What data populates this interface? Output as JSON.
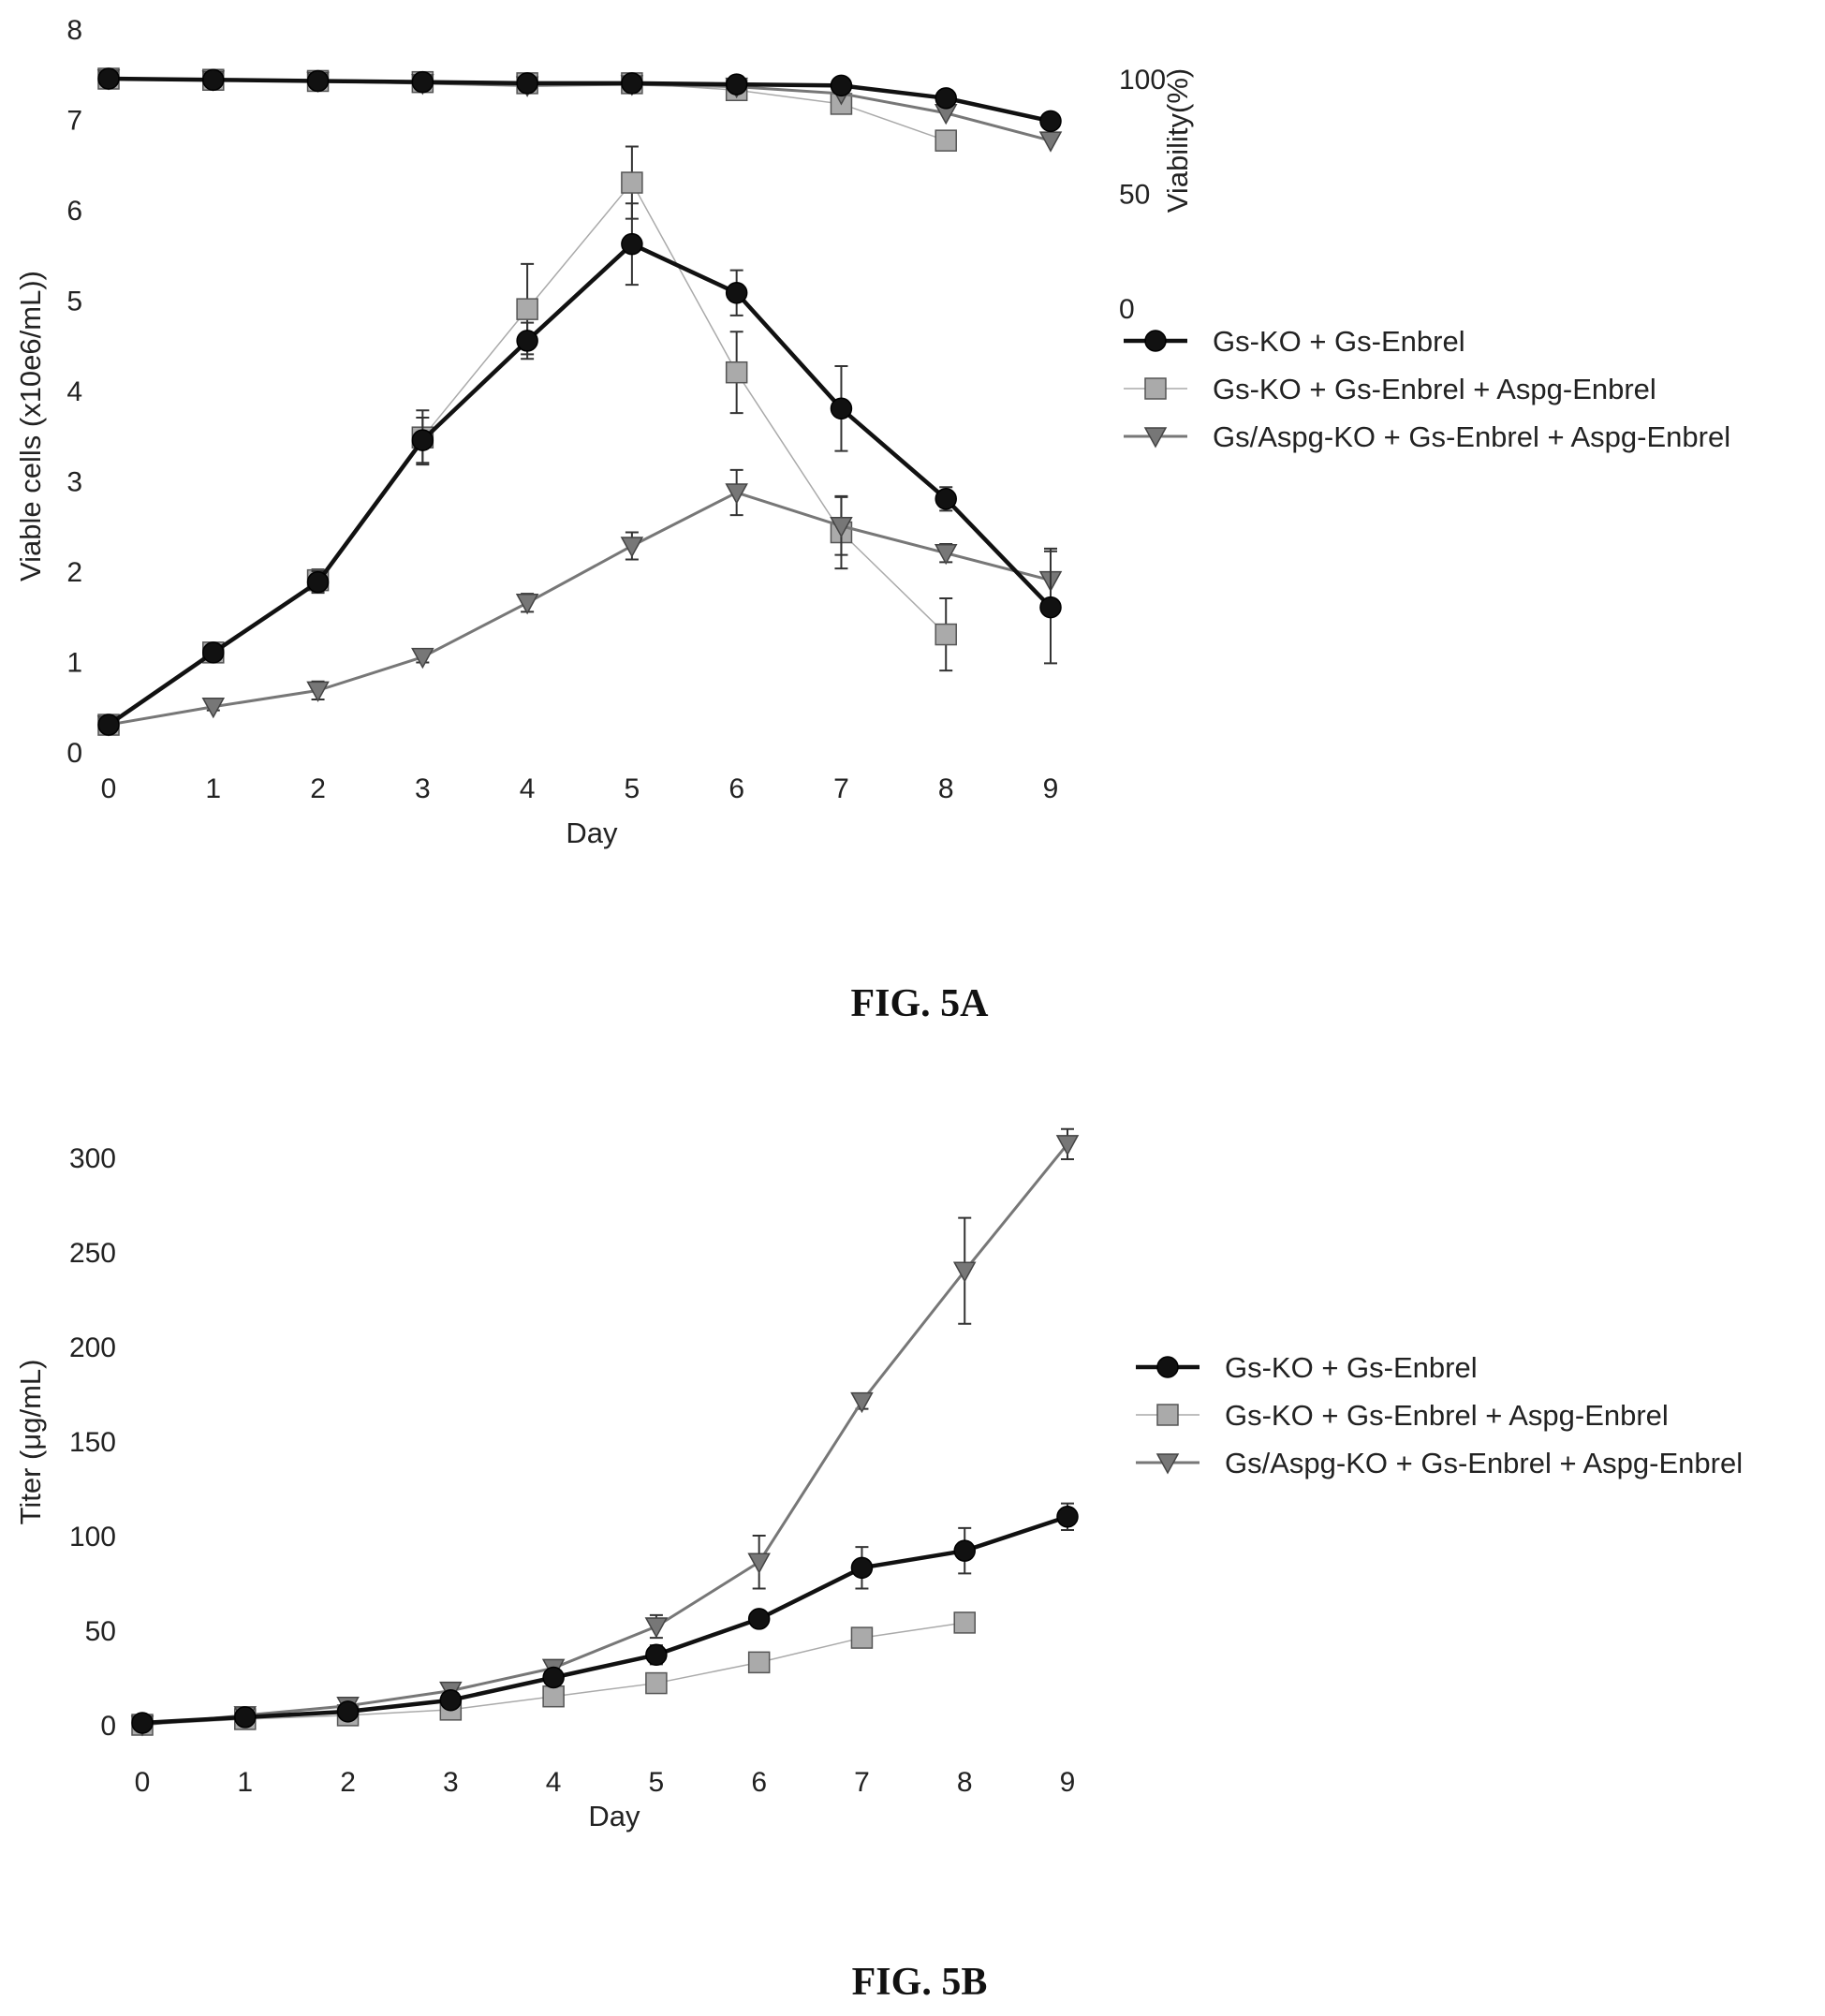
{
  "chart_data": [
    {
      "type": "line",
      "caption": "FIG. 5A",
      "xlabel": "Day",
      "ylabel": "Viable cells (x10e6/mL))",
      "y2label": "Viability(%)",
      "x": [
        0,
        1,
        2,
        3,
        4,
        5,
        6,
        7,
        8,
        9
      ],
      "xlim": [
        0,
        9
      ],
      "ylim": [
        0,
        8
      ],
      "yticks": [
        0,
        1,
        2,
        3,
        4,
        5,
        6,
        7,
        8
      ],
      "y2ticks": [
        0,
        50,
        100
      ],
      "y2lim": [
        0,
        100
      ],
      "legend_position": "right",
      "series": [
        {
          "name": "Gs-KO + Gs-Enbrel",
          "marker": "circle",
          "color": "#111111",
          "stroke_width": 4.5,
          "axis": "left",
          "values": [
            0.3,
            1.1,
            1.88,
            3.45,
            4.55,
            5.62,
            5.08,
            3.8,
            2.8,
            1.6
          ],
          "errors": [
            0.03,
            0.05,
            0.12,
            0.25,
            0.2,
            0.45,
            0.25,
            0.47,
            0.13,
            0.62
          ]
        },
        {
          "name": "Gs-KO + Gs-Enbrel + Aspg-Enbrel",
          "marker": "square",
          "color": "#aaaaaa",
          "stroke_width": 1.5,
          "axis": "left",
          "values": [
            0.3,
            1.1,
            1.9,
            3.48,
            4.9,
            6.3,
            4.2,
            2.43,
            1.3,
            null
          ],
          "errors": [
            0.03,
            0.05,
            0.12,
            0.3,
            0.5,
            0.4,
            0.45,
            0.4,
            0.4,
            null
          ]
        },
        {
          "name": "Gs/Aspg-KO + Gs-Enbrel + Aspg-Enbrel",
          "marker": "triangle-down",
          "color": "#777777",
          "stroke_width": 3,
          "axis": "left",
          "values": [
            0.3,
            0.5,
            0.68,
            1.05,
            1.65,
            2.28,
            2.87,
            2.5,
            2.2,
            1.9
          ],
          "errors": [
            0.03,
            0.04,
            0.1,
            0.06,
            0.1,
            0.15,
            0.25,
            0.32,
            0.1,
            0.35
          ]
        },
        {
          "name": "Gs-KO + Gs-Enbrel (viability)",
          "marker": "circle",
          "color": "#111111",
          "stroke_width": 4.5,
          "axis": "right",
          "values": [
            100,
            99.5,
            99,
            98.5,
            98,
            98,
            97.5,
            97,
            91.5,
            81.5
          ]
        },
        {
          "name": "Gs-KO + Gs-Enbrel + Aspg-Enbrel (viability)",
          "marker": "square",
          "color": "#aaaaaa",
          "stroke_width": 1.5,
          "axis": "right",
          "values": [
            100,
            99.5,
            99,
            98.5,
            98,
            98,
            95,
            89,
            73,
            null
          ]
        },
        {
          "name": "Gs/Aspg-KO + Gs-Enbrel + Aspg-Enbrel (viability)",
          "marker": "triangle-down",
          "color": "#777777",
          "stroke_width": 3,
          "axis": "right",
          "values": [
            100,
            99.5,
            99,
            98,
            97,
            97.5,
            96.5,
            93.5,
            85,
            73
          ]
        }
      ],
      "legend": [
        "Gs-KO + Gs-Enbrel",
        "Gs-KO + Gs-Enbrel + Aspg-Enbrel",
        "Gs/Aspg-KO + Gs-Enbrel + Aspg-Enbrel"
      ]
    },
    {
      "type": "line",
      "caption": "FIG. 5B",
      "xlabel": "Day",
      "ylabel": "Titer (μg/mL)",
      "x": [
        0,
        1,
        2,
        3,
        4,
        5,
        6,
        7,
        8,
        9
      ],
      "xlim": [
        0,
        9
      ],
      "ylim": [
        0,
        300
      ],
      "yticks": [
        0,
        50,
        100,
        150,
        200,
        250,
        300
      ],
      "legend_position": "right",
      "series": [
        {
          "name": "Gs-KO + Gs-Enbrel",
          "marker": "circle",
          "color": "#111111",
          "stroke_width": 4.5,
          "values": [
            1,
            4,
            7,
            13,
            25,
            37,
            56,
            83,
            92,
            110
          ],
          "errors": [
            0,
            1,
            1,
            2,
            3,
            5,
            3,
            11,
            12,
            7
          ]
        },
        {
          "name": "Gs-KO + Gs-Enbrel + Aspg-Enbrel",
          "marker": "square",
          "color": "#aaaaaa",
          "stroke_width": 1.5,
          "values": [
            0,
            3,
            5,
            8,
            15,
            22,
            33,
            46,
            54,
            null
          ],
          "errors": [
            0,
            1,
            1,
            1,
            2,
            2,
            2,
            2,
            2,
            null
          ]
        },
        {
          "name": "Gs/Aspg-KO + Gs-Enbrel + Aspg-Enbrel",
          "marker": "triangle-down",
          "color": "#777777",
          "stroke_width": 3,
          "values": [
            0,
            5,
            10,
            18,
            30,
            52,
            86,
            171,
            240,
            307
          ],
          "errors": [
            0,
            1,
            2,
            2,
            3,
            6,
            14,
            4,
            28,
            8
          ]
        }
      ],
      "legend": [
        "Gs-KO + Gs-Enbrel",
        "Gs-KO + Gs-Enbrel + Aspg-Enbrel",
        "Gs/Aspg-KO + Gs-Enbrel + Aspg-Enbrel"
      ]
    }
  ]
}
